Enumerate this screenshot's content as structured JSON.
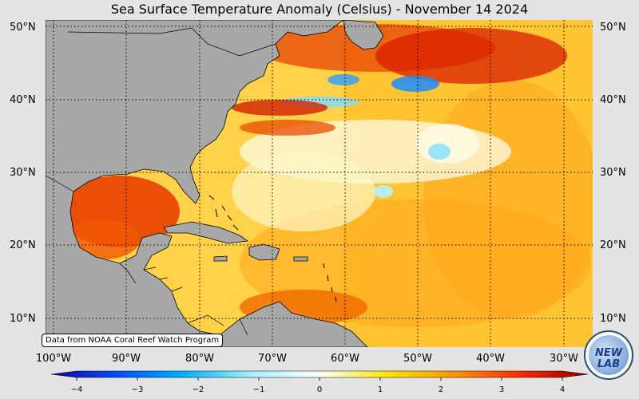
{
  "title": "Sea Surface Temperature Anomaly (Celsius) - November 14 2024",
  "lat_labels": [
    "50°N",
    "40°N",
    "30°N",
    "20°N",
    "10°N"
  ],
  "lon_labels": [
    "100°W",
    "90°W",
    "80°W",
    "70°W",
    "60°W",
    "50°W",
    "40°W",
    "30°W"
  ],
  "credit": "Data from NOAA Coral Reef Watch Program",
  "colorbar": {
    "ticks": [
      "−4",
      "−3",
      "−2",
      "−1",
      "0",
      "1",
      "2",
      "3",
      "4"
    ],
    "range": [
      -4,
      4
    ],
    "colors": [
      "#1a0099",
      "#0050ff",
      "#00b4ff",
      "#aaf0ff",
      "#ffffff",
      "#ffe600",
      "#ff9600",
      "#ff2800",
      "#8c0000"
    ]
  },
  "map": {
    "extent": {
      "lon": [
        -101,
        -26
      ],
      "lat": [
        6,
        51
      ]
    },
    "land_color": "#a8a8a8",
    "gridlines": "dotted"
  },
  "logo": {
    "text": "NEW LAB"
  }
}
